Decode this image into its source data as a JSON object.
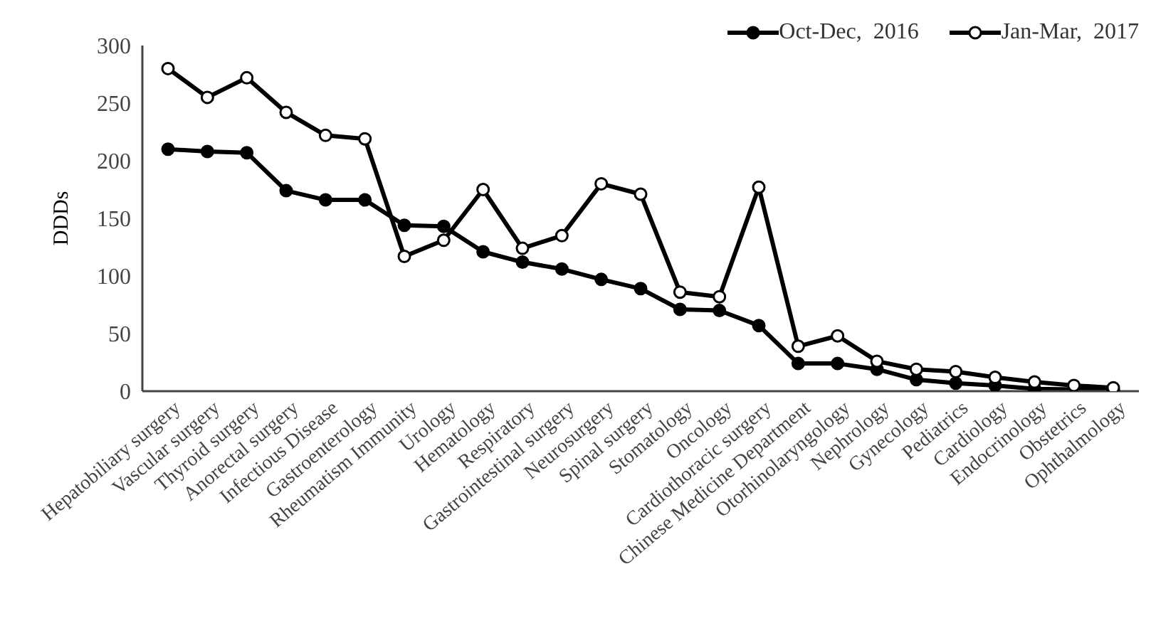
{
  "chart_data": {
    "type": "line",
    "ylabel": "DDDs",
    "categories": [
      "Hepatobiliary surgery",
      "Vascular surgery",
      "Thyroid surgery",
      "Anorectal surgery",
      "Infectious Disease",
      "Gastroenterology",
      "Rheumatism Immunity",
      "Urology",
      "Hematology",
      "Respiratory",
      "Gastrointestinal surgery",
      "Neurosurgery",
      "Spinal surgery",
      "Stomatology",
      "Oncology",
      "Cardiothoracic surgery",
      "Chinese Medicine Department",
      "Otorhinolaryngology",
      "Nephrology",
      "Gynecology",
      "Pediatrics",
      "Cardiology",
      "Endocrinology",
      "Obstetrics",
      "Ophthalmology"
    ],
    "series": [
      {
        "name": "Oct-Dec,  2016",
        "color": "#000000",
        "values": [
          210,
          208,
          207,
          174,
          166,
          166,
          144,
          143,
          121,
          112,
          106,
          97,
          89,
          71,
          70,
          57,
          24,
          24,
          19,
          10,
          7,
          5,
          2,
          null,
          1
        ]
      },
      {
        "name": "Jan-Mar,  2017",
        "color": "#000000",
        "values": [
          280,
          255,
          272,
          242,
          222,
          219,
          117,
          131,
          175,
          124,
          135,
          180,
          171,
          86,
          82,
          177,
          39,
          48,
          26,
          19,
          17,
          12,
          8,
          5,
          3
        ]
      }
    ],
    "ylim": [
      0,
      300
    ],
    "yticks": [
      0,
      50,
      100,
      150,
      200,
      250,
      300
    ],
    "grid": false,
    "legend": "top right",
    "marker": "circle",
    "line_style": "solid"
  }
}
